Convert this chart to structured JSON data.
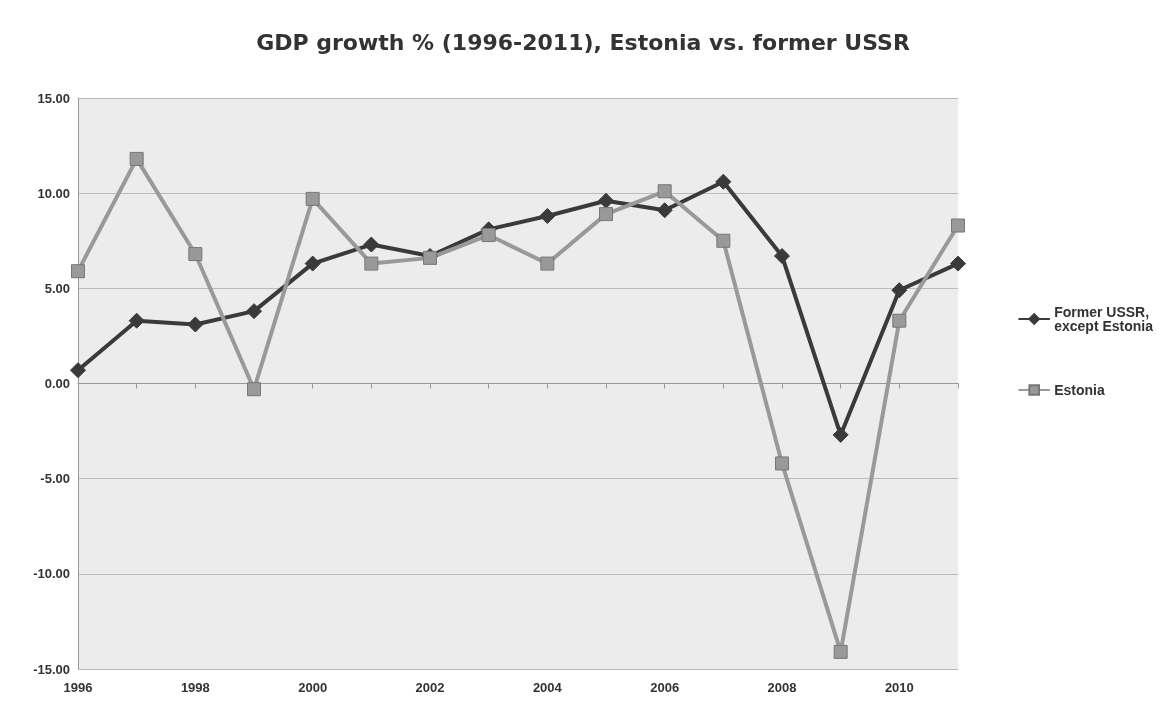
{
  "chart_data": {
    "type": "line",
    "title": "GDP growth % (1996-2011), Estonia vs. former USSR",
    "categories": [
      "1996",
      null,
      "1998",
      null,
      "2000",
      null,
      "2002",
      null,
      "2004",
      null,
      "2006",
      null,
      "2008",
      null,
      "2010",
      null
    ],
    "series": [
      {
        "name": "Former USSR, except Estonia",
        "color": "#3a3a3a",
        "marker": "diamond",
        "values": [
          0.7,
          3.3,
          3.1,
          3.8,
          6.3,
          7.3,
          6.7,
          8.1,
          8.8,
          9.6,
          9.1,
          10.6,
          6.7,
          -2.7,
          4.9,
          6.3
        ]
      },
      {
        "name": "Estonia",
        "color": "#999999",
        "marker": "square",
        "values": [
          5.9,
          11.8,
          6.8,
          -0.3,
          9.7,
          6.3,
          6.6,
          7.8,
          6.3,
          8.9,
          10.1,
          7.5,
          -4.2,
          -14.1,
          3.3,
          8.3
        ]
      }
    ],
    "ylim": [
      -15,
      15
    ],
    "yticks": [
      {
        "value": -15,
        "label": "-15.00"
      },
      {
        "value": -10,
        "label": "-10.00"
      },
      {
        "value": -5,
        "label": "-5.00"
      },
      {
        "value": 0,
        "label": "0.00"
      },
      {
        "value": 5,
        "label": "5.00"
      },
      {
        "value": 10,
        "label": "10.00"
      },
      {
        "value": 15,
        "label": "15.00"
      }
    ],
    "grid": "y",
    "legend": "right",
    "line_style": "solid"
  }
}
